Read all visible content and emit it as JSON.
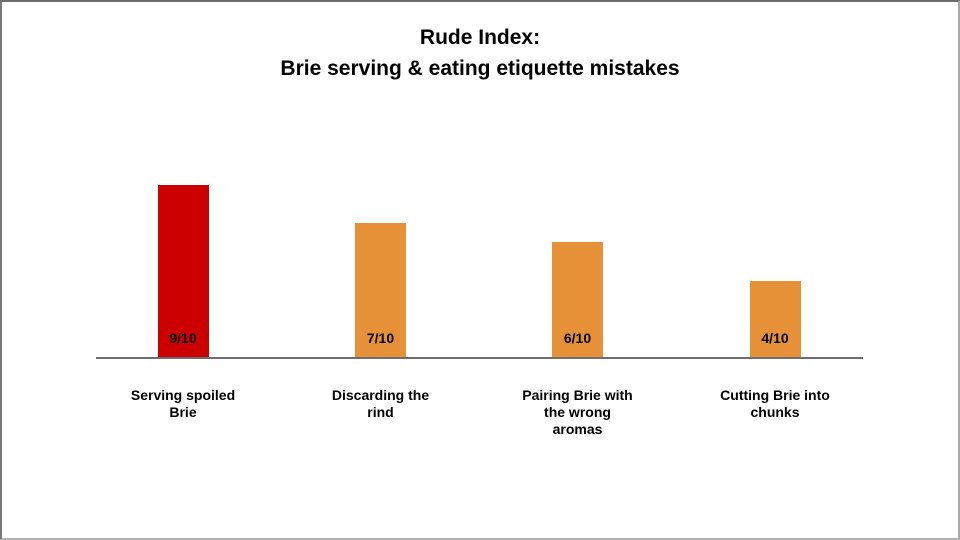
{
  "page": {
    "background": "#FFFFFF",
    "frame_border_dark": "#6D6D6D",
    "frame_border_light": "#B2B2B2"
  },
  "chart_data": {
    "type": "bar",
    "title_line1": "Rude Index:",
    "title_line2": "Brie serving & eating etiquette mistakes",
    "categories": [
      "Serving spoiled\nBrie",
      "Discarding the\nrind",
      "Pairing Brie with\nthe wrong\naromas",
      "Cutting Brie into\nchunks"
    ],
    "values": [
      9,
      7,
      6,
      4
    ],
    "value_labels": [
      "9/10",
      "7/10",
      "6/10",
      "4/10"
    ],
    "bar_colors": [
      "#CC0000",
      "#E69138",
      "#E69138",
      "#E69138"
    ],
    "ylim": [
      0,
      10
    ],
    "xlabel": "",
    "ylabel": "",
    "grid": false,
    "legend": "none",
    "axis_color": "#6E6E6E",
    "text_color": "#000000",
    "value_label_position": "inside-bottom"
  }
}
